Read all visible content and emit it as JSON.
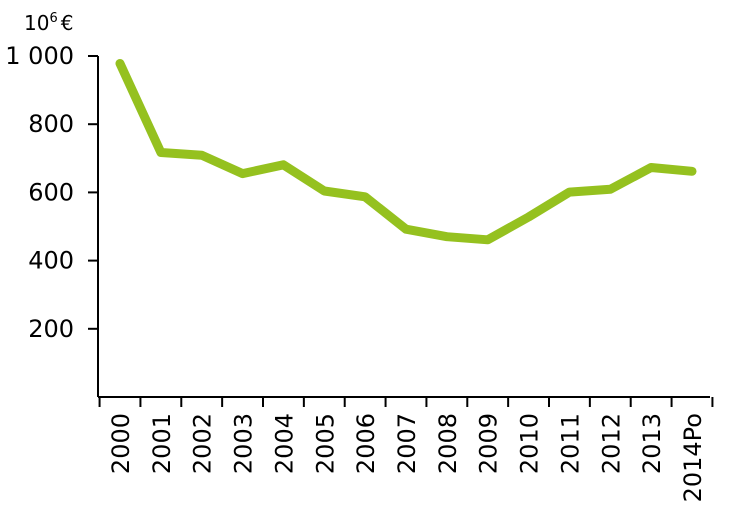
{
  "chart_data": {
    "type": "line",
    "unit_label": {
      "base": "10",
      "exponent": "6",
      "currency": "€"
    },
    "categories": [
      "2000",
      "2001",
      "2002",
      "2003",
      "2004",
      "2005",
      "2006",
      "2007",
      "2008",
      "2009",
      "2010",
      "2011",
      "2012",
      "2013",
      "2014Po"
    ],
    "series": [
      {
        "values": [
          978,
          717,
          709,
          655,
          681,
          604,
          587,
          492,
          470,
          461,
          528,
          601,
          609,
          673,
          662
        ],
        "color": "#95c11f"
      }
    ],
    "y_ticks": [
      {
        "value": 200,
        "label": "200"
      },
      {
        "value": 400,
        "label": "400"
      },
      {
        "value": 600,
        "label": "600"
      },
      {
        "value": 800,
        "label": "800"
      },
      {
        "value": 1000,
        "label": "1 000"
      }
    ],
    "ylim": [
      0,
      1000
    ],
    "grid": false,
    "legend": "none"
  }
}
